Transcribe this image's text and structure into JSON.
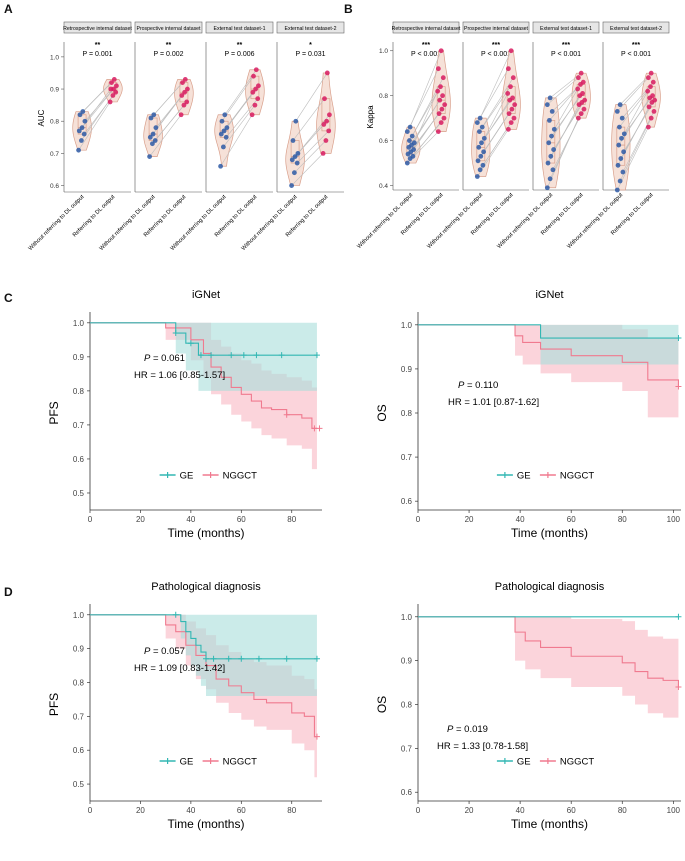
{
  "panel_labels": [
    "A",
    "B",
    "C",
    "D"
  ],
  "facet_titles": [
    "Retrospective internal dataset",
    "Prospective internal dataset",
    "External test dataset-1",
    "External test dataset-2"
  ],
  "x_categories": [
    "Without referring to DL output",
    "Referring to DL output"
  ],
  "colors": {
    "without": "#2e5aa6",
    "with": "#d81b60",
    "violin_fill": "#f6e1d8",
    "violin_stroke": "#d9a08c",
    "ge": "#32b7b3",
    "ge_band": "#a9dedb",
    "nggct": "#f07a8f",
    "nggct_band": "#f9c6cf",
    "overlap_band": "#c9b7c0"
  },
  "legend": {
    "ge": "GE",
    "nggct": "NGGCT"
  },
  "chart_data": [
    {
      "id": "A",
      "type": "violin",
      "ylabel": "AUC",
      "ylim": [
        0.58,
        1.04
      ],
      "yticks": [
        0.6,
        0.7,
        0.8,
        0.9,
        1.0
      ],
      "facets": [
        {
          "sig": "**",
          "p": "P = 0.001",
          "without": [
            0.71,
            0.74,
            0.76,
            0.77,
            0.78,
            0.8,
            0.82,
            0.83
          ],
          "with": [
            0.86,
            0.88,
            0.89,
            0.9,
            0.9,
            0.91,
            0.92,
            0.93
          ]
        },
        {
          "sig": "**",
          "p": "P = 0.002",
          "without": [
            0.69,
            0.73,
            0.74,
            0.75,
            0.76,
            0.78,
            0.81,
            0.82
          ],
          "with": [
            0.82,
            0.85,
            0.86,
            0.88,
            0.89,
            0.9,
            0.92,
            0.93
          ]
        },
        {
          "sig": "**",
          "p": "P = 0.006",
          "without": [
            0.66,
            0.72,
            0.75,
            0.76,
            0.77,
            0.78,
            0.8,
            0.82
          ],
          "with": [
            0.82,
            0.85,
            0.87,
            0.89,
            0.9,
            0.91,
            0.94,
            0.96
          ]
        },
        {
          "sig": "*",
          "p": "P = 0.031",
          "without": [
            0.6,
            0.64,
            0.67,
            0.68,
            0.69,
            0.7,
            0.74,
            0.8
          ],
          "with": [
            0.7,
            0.74,
            0.77,
            0.79,
            0.8,
            0.82,
            0.87,
            0.95
          ]
        }
      ]
    },
    {
      "id": "B",
      "type": "violin",
      "ylabel": "Kappa",
      "ylim": [
        0.38,
        1.03
      ],
      "yticks": [
        0.4,
        0.6,
        0.8,
        1.0
      ],
      "facets": [
        {
          "sig": "***",
          "p": "P < 0.001",
          "without": [
            0.5,
            0.52,
            0.53,
            0.54,
            0.55,
            0.56,
            0.57,
            0.58,
            0.59,
            0.6,
            0.62,
            0.64,
            0.66
          ],
          "with": [
            0.64,
            0.68,
            0.7,
            0.72,
            0.74,
            0.76,
            0.78,
            0.8,
            0.82,
            0.84,
            0.88,
            0.92,
            1.0
          ]
        },
        {
          "sig": "***",
          "p": "P < 0.001",
          "without": [
            0.44,
            0.47,
            0.49,
            0.51,
            0.53,
            0.55,
            0.57,
            0.59,
            0.61,
            0.64,
            0.66,
            0.68,
            0.7
          ],
          "with": [
            0.65,
            0.68,
            0.7,
            0.72,
            0.74,
            0.76,
            0.78,
            0.79,
            0.81,
            0.84,
            0.88,
            0.92,
            1.0
          ]
        },
        {
          "sig": "***",
          "p": "P < 0.001",
          "without": [
            0.39,
            0.43,
            0.47,
            0.5,
            0.53,
            0.56,
            0.59,
            0.62,
            0.65,
            0.69,
            0.73,
            0.76,
            0.79
          ],
          "with": [
            0.7,
            0.72,
            0.74,
            0.76,
            0.77,
            0.78,
            0.8,
            0.81,
            0.83,
            0.85,
            0.86,
            0.88,
            0.9
          ]
        },
        {
          "sig": "***",
          "p": "P < 0.001",
          "without": [
            0.38,
            0.42,
            0.46,
            0.49,
            0.52,
            0.55,
            0.58,
            0.61,
            0.63,
            0.66,
            0.7,
            0.73,
            0.76
          ],
          "with": [
            0.66,
            0.7,
            0.73,
            0.75,
            0.77,
            0.78,
            0.79,
            0.8,
            0.82,
            0.84,
            0.86,
            0.88,
            0.9
          ]
        }
      ]
    },
    {
      "id": "C-left",
      "type": "km",
      "title": "iGNet",
      "ylabel": "PFS",
      "xlabel": "Time (months)",
      "xlim": [
        0,
        92
      ],
      "xticks": [
        0,
        20,
        40,
        60,
        80
      ],
      "ylim": [
        0.45,
        1.02
      ],
      "yticks": [
        0.5,
        0.6,
        0.7,
        0.8,
        0.9,
        1.0
      ],
      "p_value": "0.061",
      "hr": "HR = 1.06 [0.85-1.57]",
      "ge": {
        "t": [
          0,
          34,
          38,
          43,
          90
        ],
        "s": [
          1.0,
          0.97,
          0.94,
          0.905,
          0.905
        ],
        "lo": [
          1.0,
          0.91,
          0.86,
          0.8,
          0.8
        ],
        "hi": [
          1.0,
          1.0,
          1.0,
          1.0,
          1.0
        ],
        "censor": [
          [
            34,
            0.97
          ],
          [
            40,
            0.94
          ],
          [
            44,
            0.905
          ],
          [
            48,
            0.905
          ],
          [
            56,
            0.905
          ],
          [
            61,
            0.905
          ],
          [
            66,
            0.905
          ],
          [
            76,
            0.905
          ],
          [
            90,
            0.905
          ]
        ]
      },
      "nggct": {
        "t": [
          0,
          30,
          40,
          45,
          48,
          52,
          56,
          60,
          64,
          68,
          72,
          78,
          84,
          88,
          90
        ],
        "s": [
          1.0,
          0.985,
          0.95,
          0.91,
          0.87,
          0.84,
          0.81,
          0.79,
          0.77,
          0.75,
          0.745,
          0.73,
          0.72,
          0.69,
          0.69
        ],
        "lo": [
          1.0,
          0.95,
          0.89,
          0.84,
          0.79,
          0.76,
          0.73,
          0.71,
          0.69,
          0.67,
          0.66,
          0.64,
          0.63,
          0.57,
          0.57
        ],
        "hi": [
          1.0,
          1.0,
          1.0,
          1.0,
          0.95,
          0.93,
          0.91,
          0.89,
          0.88,
          0.86,
          0.85,
          0.84,
          0.83,
          0.81,
          0.81
        ],
        "censor": [
          [
            78,
            0.73
          ],
          [
            89,
            0.69
          ],
          [
            91,
            0.69
          ]
        ]
      }
    },
    {
      "id": "C-right",
      "type": "km",
      "title": "iGNet",
      "ylabel": "OS",
      "xlabel": "Time (months)",
      "xlim": [
        0,
        103
      ],
      "xticks": [
        0,
        20,
        40,
        60,
        80,
        100
      ],
      "ylim": [
        0.58,
        1.02
      ],
      "yticks": [
        0.6,
        0.7,
        0.8,
        0.9,
        1.0
      ],
      "p_value": "0.110",
      "hr": "HR = 1.01 [0.87-1.62]",
      "ge": {
        "t": [
          0,
          48,
          102
        ],
        "s": [
          1.0,
          0.97,
          0.97
        ],
        "lo": [
          1.0,
          0.91,
          0.91
        ],
        "hi": [
          1.0,
          1.0,
          1.0
        ],
        "censor": [
          [
            102,
            0.97
          ]
        ]
      },
      "nggct": {
        "t": [
          0,
          38,
          41,
          48,
          60,
          80,
          90,
          102
        ],
        "s": [
          1.0,
          0.975,
          0.96,
          0.945,
          0.93,
          0.915,
          0.875,
          0.86
        ],
        "lo": [
          1.0,
          0.93,
          0.91,
          0.89,
          0.87,
          0.85,
          0.79,
          0.79
        ],
        "hi": [
          1.0,
          1.0,
          1.0,
          1.0,
          1.0,
          0.99,
          0.97,
          0.97
        ],
        "censor": [
          [
            102,
            0.86
          ]
        ]
      }
    },
    {
      "id": "D-left",
      "type": "km",
      "title": "Pathological diagnosis",
      "ylabel": "PFS",
      "xlabel": "Time (months)",
      "xlim": [
        0,
        92
      ],
      "xticks": [
        0,
        20,
        40,
        60,
        80
      ],
      "ylim": [
        0.45,
        1.02
      ],
      "yticks": [
        0.5,
        0.6,
        0.7,
        0.8,
        0.9,
        1.0
      ],
      "p_value": "0.057",
      "hr": "HR = 1.09 [0.83-1.42]",
      "ge": {
        "t": [
          0,
          36,
          38,
          40,
          42,
          44,
          46,
          90
        ],
        "s": [
          1.0,
          0.98,
          0.95,
          0.93,
          0.91,
          0.89,
          0.87,
          0.87
        ],
        "lo": [
          1.0,
          0.93,
          0.88,
          0.85,
          0.82,
          0.79,
          0.76,
          0.76
        ],
        "hi": [
          1.0,
          1.0,
          1.0,
          1.0,
          1.0,
          1.0,
          1.0,
          1.0
        ],
        "censor": [
          [
            34,
            1.0
          ],
          [
            46,
            0.87
          ],
          [
            49,
            0.87
          ],
          [
            55,
            0.87
          ],
          [
            60,
            0.87
          ],
          [
            67,
            0.87
          ],
          [
            78,
            0.87
          ],
          [
            90,
            0.87
          ]
        ]
      },
      "nggct": {
        "t": [
          0,
          30,
          34,
          38,
          42,
          46,
          50,
          55,
          60,
          65,
          70,
          80,
          85,
          89,
          90
        ],
        "s": [
          1.0,
          0.97,
          0.95,
          0.91,
          0.88,
          0.85,
          0.81,
          0.79,
          0.77,
          0.75,
          0.74,
          0.71,
          0.7,
          0.64,
          0.64
        ],
        "lo": [
          1.0,
          0.93,
          0.9,
          0.85,
          0.81,
          0.78,
          0.74,
          0.71,
          0.69,
          0.67,
          0.66,
          0.62,
          0.6,
          0.52,
          0.52
        ],
        "hi": [
          1.0,
          1.0,
          1.0,
          0.98,
          0.96,
          0.94,
          0.91,
          0.89,
          0.87,
          0.86,
          0.85,
          0.82,
          0.81,
          0.78,
          0.78
        ],
        "censor": [
          [
            90,
            0.64
          ]
        ]
      }
    },
    {
      "id": "D-right",
      "type": "km",
      "title": "Pathological diagnosis",
      "ylabel": "OS",
      "xlabel": "Time (months)",
      "xlim": [
        0,
        103
      ],
      "xticks": [
        0,
        20,
        40,
        60,
        80,
        100
      ],
      "ylim": [
        0.58,
        1.02
      ],
      "yticks": [
        0.6,
        0.7,
        0.8,
        0.9,
        1.0
      ],
      "p_value": "0.019",
      "hr": "HR = 1.33 [0.78-1.58]",
      "ge": {
        "t": [
          0,
          102
        ],
        "s": [
          1.0,
          1.0
        ],
        "lo": [
          1.0,
          1.0
        ],
        "hi": [
          1.0,
          1.0
        ],
        "censor": [
          [
            102,
            1.0
          ]
        ]
      },
      "nggct": {
        "t": [
          0,
          38,
          42,
          48,
          60,
          80,
          85,
          90,
          96,
          102
        ],
        "s": [
          1.0,
          0.965,
          0.945,
          0.93,
          0.91,
          0.895,
          0.875,
          0.86,
          0.855,
          0.84
        ],
        "lo": [
          1.0,
          0.9,
          0.88,
          0.86,
          0.84,
          0.82,
          0.8,
          0.78,
          0.77,
          0.77
        ],
        "hi": [
          1.0,
          1.0,
          1.0,
          1.0,
          0.995,
          0.99,
          0.97,
          0.955,
          0.95,
          0.95
        ],
        "censor": [
          [
            102,
            0.84
          ]
        ]
      }
    }
  ]
}
